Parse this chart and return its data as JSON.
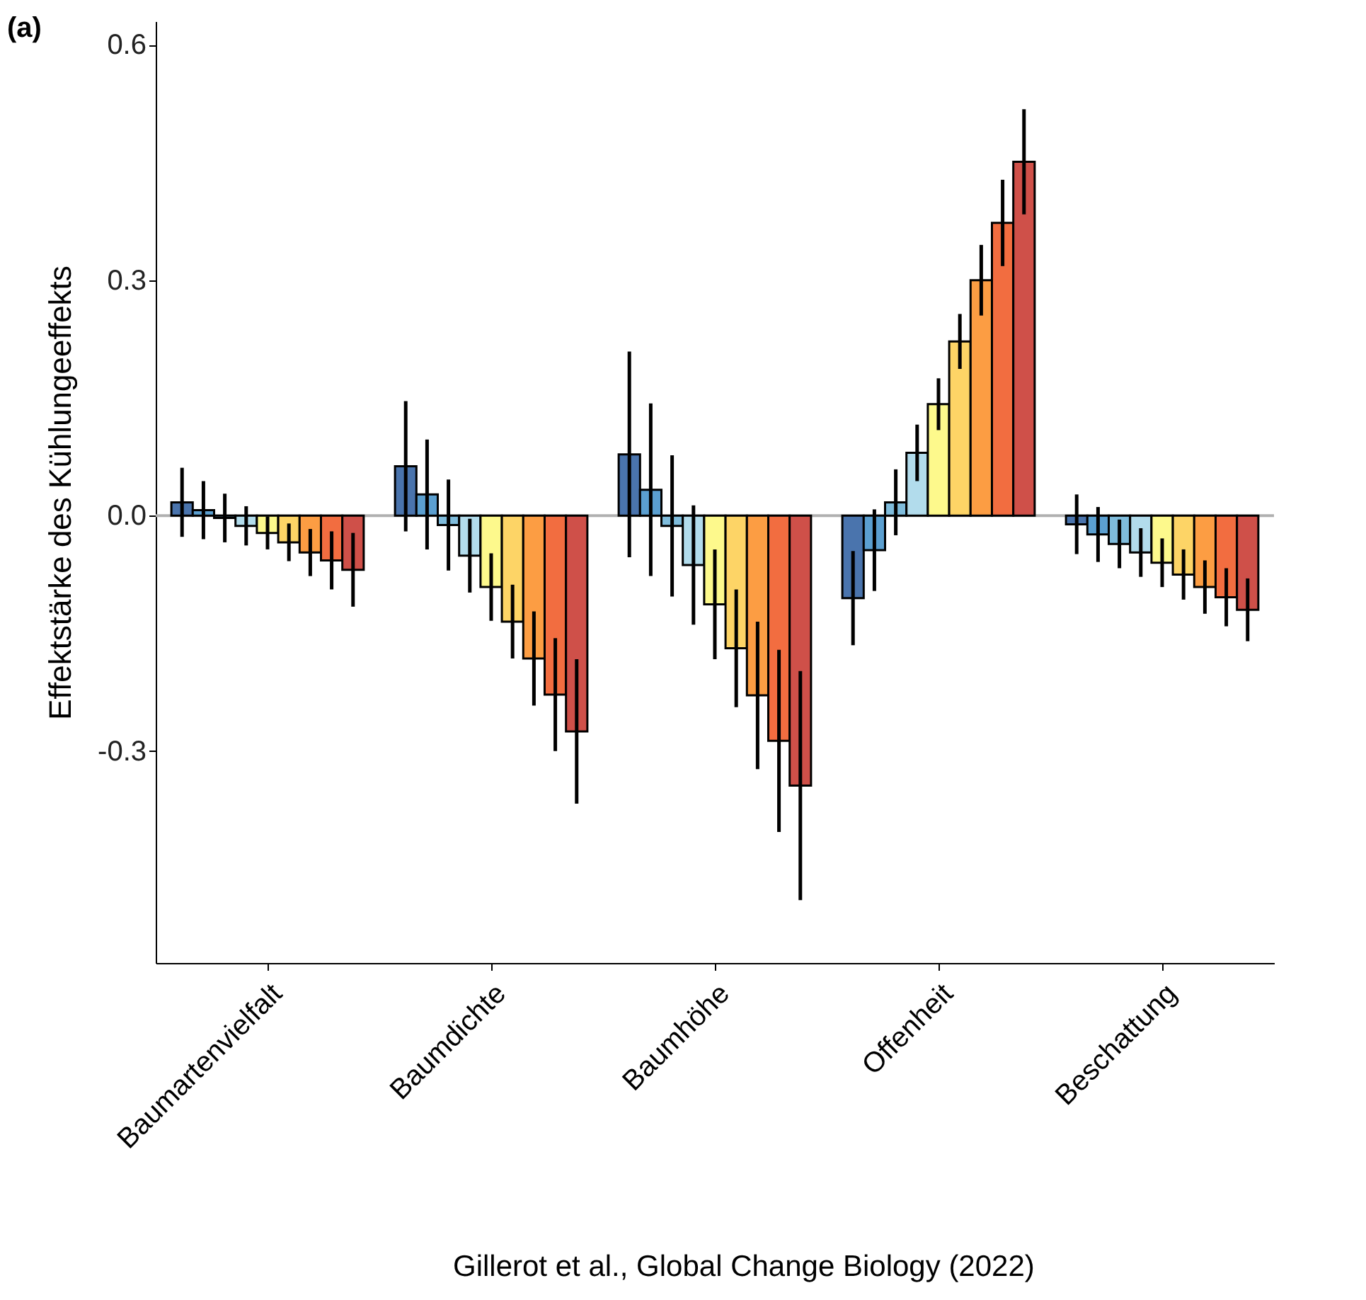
{
  "chart_data": {
    "type": "bar",
    "ylabel": "Effektstärke des Kühlungeeffekts",
    "categories": [
      "Baumartenvielfalt",
      "Baumdichte",
      "Baumhöhe",
      "Offenheit",
      "Beschattung"
    ],
    "series": [
      {
        "color": "#4a74ad",
        "values": [
          0.017,
          0.063,
          0.078,
          -0.105,
          -0.011
        ],
        "errors": [
          0.044,
          0.083,
          0.131,
          0.06,
          0.038
        ]
      },
      {
        "color": "#5b9fd0",
        "values": [
          0.007,
          0.027,
          0.033,
          -0.044,
          -0.024
        ],
        "errors": [
          0.037,
          0.07,
          0.11,
          0.052,
          0.035
        ]
      },
      {
        "color": "#7fbcdc",
        "values": [
          -0.003,
          -0.012,
          -0.013,
          0.017,
          -0.036
        ],
        "errors": [
          0.031,
          0.058,
          0.09,
          0.042,
          0.031
        ]
      },
      {
        "color": "#b2dcec",
        "values": [
          -0.013,
          -0.051,
          -0.063,
          0.08,
          -0.047
        ],
        "errors": [
          0.025,
          0.047,
          0.076,
          0.036,
          0.031
        ]
      },
      {
        "color": "#fdf98c",
        "values": [
          -0.022,
          -0.091,
          -0.113,
          0.142,
          -0.06
        ],
        "errors": [
          0.021,
          0.043,
          0.07,
          0.033,
          0.031
        ]
      },
      {
        "color": "#fdd466",
        "values": [
          -0.034,
          -0.135,
          -0.169,
          0.222,
          -0.075
        ],
        "errors": [
          0.024,
          0.047,
          0.075,
          0.035,
          0.032
        ]
      },
      {
        "color": "#fc9d43",
        "values": [
          -0.047,
          -0.182,
          -0.229,
          0.3,
          -0.091
        ],
        "errors": [
          0.03,
          0.06,
          0.094,
          0.045,
          0.034
        ]
      },
      {
        "color": "#f26d40",
        "values": [
          -0.057,
          -0.228,
          -0.287,
          0.373,
          -0.104
        ],
        "errors": [
          0.037,
          0.072,
          0.116,
          0.055,
          0.037
        ]
      },
      {
        "color": "#cf5049",
        "values": [
          -0.069,
          -0.275,
          -0.344,
          0.451,
          -0.12
        ],
        "errors": [
          0.047,
          0.092,
          0.146,
          0.067,
          0.04
        ]
      }
    ],
    "ylim": [
      -0.57,
      0.63
    ],
    "yticks": [
      {
        "value": -0.3,
        "label": "-0.3"
      },
      {
        "value": 0,
        "label": "0.0"
      },
      0.3,
      0.6
    ],
    "ref_lines": [
      {
        "axis": "y",
        "value": 0,
        "color": "#b0b0b0"
      }
    ],
    "annotations": [
      "(a)",
      "Gillerot et al., Global Change Biology (2022)"
    ],
    "grid": false,
    "legend": false
  }
}
